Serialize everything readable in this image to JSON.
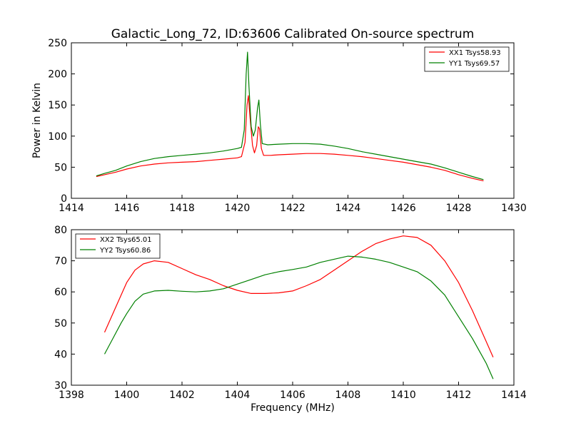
{
  "chart_data": [
    {
      "type": "line",
      "title": "Galactic_Long_72, ID:63606 Calibrated On-source spectrum",
      "xlabel": "",
      "ylabel": "Power in Kelvin",
      "xlim": [
        1414,
        1430
      ],
      "ylim": [
        0,
        250
      ],
      "xticks": [
        1414,
        1416,
        1418,
        1420,
        1422,
        1424,
        1426,
        1428,
        1430
      ],
      "yticks": [
        0,
        50,
        100,
        150,
        200,
        250
      ],
      "grid": false,
      "legend": "top-right",
      "series": [
        {
          "name": "XX1 Tsys58.93",
          "color": "#ff0000",
          "points": [
            [
              1414.9,
              35
            ],
            [
              1415.2,
              38
            ],
            [
              1415.6,
              42
            ],
            [
              1416.0,
              47
            ],
            [
              1416.5,
              52
            ],
            [
              1417.0,
              55
            ],
            [
              1417.5,
              57
            ],
            [
              1418.0,
              58
            ],
            [
              1418.5,
              59
            ],
            [
              1419.0,
              61
            ],
            [
              1419.5,
              63
            ],
            [
              1420.0,
              65
            ],
            [
              1420.15,
              67
            ],
            [
              1420.28,
              90
            ],
            [
              1420.35,
              150
            ],
            [
              1420.4,
              165
            ],
            [
              1420.46,
              130
            ],
            [
              1420.55,
              85
            ],
            [
              1420.62,
              73
            ],
            [
              1420.7,
              85
            ],
            [
              1420.76,
              115
            ],
            [
              1420.8,
              112
            ],
            [
              1420.87,
              80
            ],
            [
              1420.95,
              69
            ],
            [
              1421.2,
              69
            ],
            [
              1421.5,
              70
            ],
            [
              1422.0,
              71
            ],
            [
              1422.5,
              72
            ],
            [
              1423.0,
              72
            ],
            [
              1423.5,
              71
            ],
            [
              1424.0,
              69
            ],
            [
              1424.5,
              67
            ],
            [
              1425.0,
              64
            ],
            [
              1425.5,
              61
            ],
            [
              1426.0,
              58
            ],
            [
              1426.5,
              54
            ],
            [
              1427.0,
              50
            ],
            [
              1427.5,
              45
            ],
            [
              1428.0,
              38
            ],
            [
              1428.5,
              32
            ],
            [
              1428.9,
              28
            ]
          ]
        },
        {
          "name": "YY1 Tsys69.57",
          "color": "#008000",
          "points": [
            [
              1414.9,
              36
            ],
            [
              1415.2,
              40
            ],
            [
              1415.6,
              45
            ],
            [
              1416.0,
              52
            ],
            [
              1416.5,
              59
            ],
            [
              1417.0,
              64
            ],
            [
              1417.5,
              67
            ],
            [
              1418.0,
              69
            ],
            [
              1418.5,
              71
            ],
            [
              1419.0,
              73
            ],
            [
              1419.5,
              76
            ],
            [
              1420.0,
              80
            ],
            [
              1420.15,
              82
            ],
            [
              1420.25,
              110
            ],
            [
              1420.32,
              200
            ],
            [
              1420.37,
              235
            ],
            [
              1420.42,
              180
            ],
            [
              1420.5,
              115
            ],
            [
              1420.58,
              100
            ],
            [
              1420.65,
              110
            ],
            [
              1420.73,
              145
            ],
            [
              1420.78,
              158
            ],
            [
              1420.83,
              120
            ],
            [
              1420.9,
              88
            ],
            [
              1421.1,
              86
            ],
            [
              1421.5,
              87
            ],
            [
              1422.0,
              88
            ],
            [
              1422.5,
              88
            ],
            [
              1423.0,
              87
            ],
            [
              1423.5,
              84
            ],
            [
              1424.0,
              80
            ],
            [
              1424.5,
              75
            ],
            [
              1425.0,
              71
            ],
            [
              1425.5,
              67
            ],
            [
              1426.0,
              63
            ],
            [
              1426.5,
              59
            ],
            [
              1427.0,
              55
            ],
            [
              1427.5,
              49
            ],
            [
              1428.0,
              42
            ],
            [
              1428.5,
              35
            ],
            [
              1428.9,
              30
            ]
          ]
        }
      ]
    },
    {
      "type": "line",
      "title": "",
      "xlabel": "Frequency (MHz)",
      "ylabel": "",
      "xlim": [
        1398,
        1414
      ],
      "ylim": [
        30,
        80
      ],
      "xticks": [
        1398,
        1400,
        1402,
        1404,
        1406,
        1408,
        1410,
        1412,
        1414
      ],
      "yticks": [
        30,
        40,
        50,
        60,
        70,
        80
      ],
      "grid": false,
      "legend": "top-left",
      "series": [
        {
          "name": "XX2 Tsys65.01",
          "color": "#ff0000",
          "points": [
            [
              1399.2,
              47
            ],
            [
              1399.5,
              53
            ],
            [
              1399.8,
              59
            ],
            [
              1400.0,
              63
            ],
            [
              1400.3,
              67
            ],
            [
              1400.6,
              69
            ],
            [
              1401.0,
              70
            ],
            [
              1401.5,
              69.5
            ],
            [
              1402.0,
              67.5
            ],
            [
              1402.5,
              65.5
            ],
            [
              1403.0,
              64
            ],
            [
              1403.5,
              62
            ],
            [
              1404.0,
              60.5
            ],
            [
              1404.5,
              59.5
            ],
            [
              1405.0,
              59.5
            ],
            [
              1405.5,
              59.7
            ],
            [
              1406.0,
              60.3
            ],
            [
              1406.5,
              62
            ],
            [
              1407.0,
              64
            ],
            [
              1407.5,
              67
            ],
            [
              1408.0,
              70
            ],
            [
              1408.5,
              73
            ],
            [
              1409.0,
              75.5
            ],
            [
              1409.5,
              77
            ],
            [
              1410.0,
              78
            ],
            [
              1410.5,
              77.5
            ],
            [
              1411.0,
              75
            ],
            [
              1411.5,
              70
            ],
            [
              1412.0,
              63
            ],
            [
              1412.5,
              54
            ],
            [
              1413.0,
              44
            ],
            [
              1413.25,
              39
            ]
          ]
        },
        {
          "name": "YY2 Tsys60.86",
          "color": "#008000",
          "points": [
            [
              1399.2,
              40
            ],
            [
              1399.5,
              45
            ],
            [
              1399.8,
              50
            ],
            [
              1400.0,
              53
            ],
            [
              1400.3,
              57
            ],
            [
              1400.6,
              59.3
            ],
            [
              1401.0,
              60.3
            ],
            [
              1401.5,
              60.5
            ],
            [
              1402.0,
              60.2
            ],
            [
              1402.5,
              60
            ],
            [
              1403.0,
              60.3
            ],
            [
              1403.5,
              61
            ],
            [
              1404.0,
              62.5
            ],
            [
              1404.5,
              64
            ],
            [
              1405.0,
              65.5
            ],
            [
              1405.5,
              66.5
            ],
            [
              1406.0,
              67.2
            ],
            [
              1406.5,
              68
            ],
            [
              1407.0,
              69.5
            ],
            [
              1407.5,
              70.5
            ],
            [
              1408.0,
              71.5
            ],
            [
              1408.5,
              71.2
            ],
            [
              1409.0,
              70.5
            ],
            [
              1409.5,
              69.5
            ],
            [
              1410.0,
              68
            ],
            [
              1410.5,
              66.5
            ],
            [
              1411.0,
              63.5
            ],
            [
              1411.5,
              59
            ],
            [
              1412.0,
              52
            ],
            [
              1412.5,
              45
            ],
            [
              1413.0,
              37
            ],
            [
              1413.25,
              32
            ]
          ]
        }
      ]
    }
  ]
}
